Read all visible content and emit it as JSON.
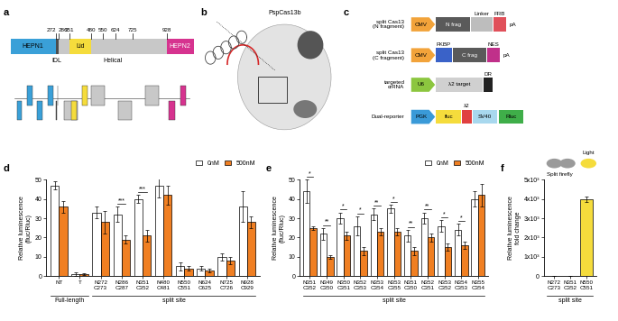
{
  "panel_labels": [
    "a",
    "b",
    "c",
    "d",
    "e",
    "f"
  ],
  "domain_map": {
    "split_sites": [
      272,
      286,
      351,
      480,
      550,
      624,
      725,
      928
    ],
    "domains": [
      {
        "name": "HEPN1",
        "start": null,
        "end": 272,
        "color": "#3aa0d8",
        "label_below": false
      },
      {
        "name": "IDL",
        "start": 272,
        "end": 286,
        "color": "#4d4d4d",
        "label_below": true
      },
      {
        "name": "Helical",
        "start": 286,
        "end": 928,
        "color": "#c8c8c8",
        "label_below": true
      },
      {
        "name": "Lid",
        "start": 351,
        "end": 480,
        "color": "#f5dc3c",
        "label_below": false
      },
      {
        "name": "HEPN2",
        "start": 928,
        "end": null,
        "color": "#d6338f",
        "label_below": false
      }
    ]
  },
  "structure": {
    "title": "PspCas13b"
  },
  "constructs": [
    {
      "label": "split Cas13\n(N fragment)",
      "elements": [
        {
          "text": "CMV",
          "type": "promoter",
          "color": "#f2a33a"
        },
        {
          "text": "N frag",
          "type": "box",
          "color": "#5a5a5a"
        },
        {
          "text": "Linker",
          "type": "tag",
          "color": "#bdbdbd"
        },
        {
          "text": "FRB",
          "type": "tag",
          "color": "#e0505a"
        },
        {
          "text": "pA",
          "type": "text",
          "color": "#000000"
        }
      ]
    },
    {
      "label": "split Cas13\n(C fragment)",
      "elements": [
        {
          "text": "CMV",
          "type": "promoter",
          "color": "#f2a33a"
        },
        {
          "text": "FKBP",
          "type": "tag",
          "color": "#3a62c8"
        },
        {
          "text": "C frag",
          "type": "box",
          "color": "#5a5a5a"
        },
        {
          "text": "NES",
          "type": "tag",
          "color": "#c0308a"
        },
        {
          "text": "pA",
          "type": "text",
          "color": "#000000"
        }
      ]
    },
    {
      "label": "targeted\ncrRNA",
      "elements": [
        {
          "text": "U6",
          "type": "promoter",
          "color": "#8cc63f"
        },
        {
          "text": "λ2 target",
          "type": "box",
          "color": "#d0d0d0"
        },
        {
          "text": "DR",
          "type": "tag",
          "color": "#222222"
        }
      ]
    },
    {
      "label": "Dual-reporter",
      "elements": [
        {
          "text": "PGK",
          "type": "promoter",
          "color": "#3a9ad8"
        },
        {
          "text": "fluc",
          "type": "box",
          "color": "#f5dc3c"
        },
        {
          "text": "λ2",
          "type": "tag",
          "color": "#e04040"
        },
        {
          "text": "SV40",
          "type": "box",
          "color": "#a8d8ee"
        },
        {
          "text": "Rluc",
          "type": "box",
          "color": "#3fae49"
        }
      ]
    }
  ],
  "chart_data": [
    {
      "type": "bar",
      "y_label": "Relative luminescence\n(fluc/Rluc)",
      "categories": [
        "NT",
        "T",
        "N272\nC273",
        "N286\nC287",
        "N351\nC352",
        "N480\nC481",
        "N550\nC551",
        "N624\nC625",
        "N725\nC726",
        "N928\nC929"
      ],
      "series": [
        {
          "name": "0nM",
          "color": "#ffffff",
          "values": [
            47,
            1,
            33,
            32,
            40,
            47,
            5,
            4,
            10,
            36
          ],
          "errors": [
            2,
            1,
            3,
            4,
            2,
            6,
            2,
            1,
            2,
            8
          ]
        },
        {
          "name": "500nM",
          "color": "#f07f22",
          "values": [
            36,
            1,
            28,
            19,
            21,
            42,
            4,
            3,
            8,
            28
          ],
          "errors": [
            3,
            0.5,
            6,
            2,
            3,
            5,
            1,
            1,
            2,
            3
          ]
        }
      ],
      "significance": [
        null,
        null,
        null,
        "***",
        "***",
        null,
        null,
        null,
        null,
        null
      ],
      "groups": [
        {
          "label": "Full-length",
          "categories": [
            "NT",
            "T"
          ]
        },
        {
          "label": "split site",
          "categories": [
            "N272\nC273",
            "N286\nC287",
            "N351\nC352",
            "N480\nC481",
            "N550\nC551",
            "N624\nC625",
            "N725\nC726",
            "N928\nC929"
          ]
        }
      ],
      "ylim": [
        0,
        50
      ],
      "yticks": [
        0,
        10,
        20,
        30,
        40,
        50
      ],
      "legend": "upper right"
    },
    {
      "type": "bar",
      "y_label": "Relative luminescence\n(fluc/Rluc)",
      "categories": [
        "N351\nC352",
        "N349\nC350",
        "N350\nC351",
        "N352\nC353",
        "N353\nC354",
        "N353\nC355",
        "N351\nC350",
        "N352\nC351",
        "N353\nC352",
        "N354\nC353",
        "N355\nC354"
      ],
      "series": [
        {
          "name": "0nM",
          "color": "#ffffff",
          "values": [
            44,
            22,
            30,
            26,
            32,
            35,
            21,
            30,
            26,
            24,
            40
          ],
          "errors": [
            6,
            3,
            3,
            5,
            3,
            2,
            3,
            3,
            3,
            3,
            4
          ]
        },
        {
          "name": "500nM",
          "color": "#f07f22",
          "values": [
            25,
            10,
            21,
            13,
            23,
            23,
            13,
            20,
            15,
            16,
            42
          ],
          "errors": [
            1,
            1,
            2,
            2,
            2,
            2,
            2,
            2,
            2,
            2,
            6
          ]
        }
      ],
      "significance": [
        "*",
        "**",
        "*",
        "*",
        "**",
        "*",
        "**",
        "**",
        "*",
        "*",
        null
      ],
      "groups": [
        {
          "label": "split site",
          "categories": [
            "N351\nC352",
            "N349\nC350",
            "N350\nC351",
            "N352\nC353",
            "N353\nC354",
            "N353\nC355",
            "N351\nC350",
            "N352\nC351",
            "N353\nC352",
            "N354\nC353",
            "N355\nC354"
          ]
        }
      ],
      "ylim": [
        0,
        50
      ],
      "yticks": [
        0,
        10,
        20,
        30,
        40,
        50
      ],
      "legend": "upper right"
    },
    {
      "type": "bar",
      "y_label": "Relative luminescence\nfold change",
      "categories": [
        "N272\nC273",
        "N351\nC352",
        "N550\nC551"
      ],
      "series": [
        {
          "name": null,
          "color": "#f5dc3c",
          "values": [
            5,
            5,
            4000
          ],
          "errors": [
            5,
            5,
            150
          ]
        }
      ],
      "groups": [
        {
          "label": "split site",
          "categories": [
            "N272\nC273",
            "N351\nC352",
            "N550\nC551"
          ]
        }
      ],
      "annotations": [
        "Split firefly",
        "Light"
      ],
      "ylim": [
        0,
        5000
      ],
      "yticks": [
        0,
        {
          "value": 1000,
          "label": "1x10³"
        },
        {
          "value": 2000,
          "label": "2x10³"
        },
        {
          "value": 3000,
          "label": "3x10³"
        },
        {
          "value": 4000,
          "label": "4x10³"
        },
        {
          "value": 5000,
          "label": "5x10³"
        }
      ]
    }
  ]
}
